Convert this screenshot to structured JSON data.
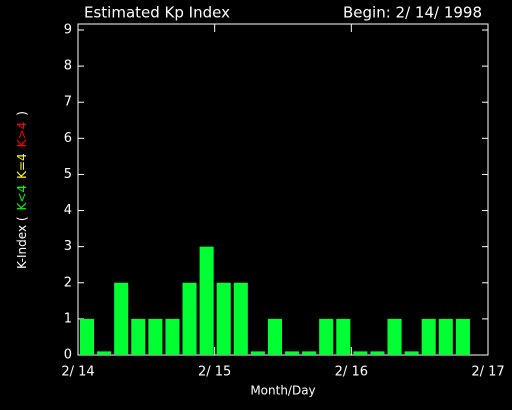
{
  "chart_data": {
    "type": "bar",
    "title": "Estimated Kp Index",
    "subtitle": "Begin: 2/ 14/ 1998",
    "xlabel": "Month/Day",
    "ylabel_parts": [
      {
        "text": "K-Index (",
        "color": "#ffffff"
      },
      {
        "text": "K<4",
        "color": "#00ff00"
      },
      {
        "text": "K=4",
        "color": "#ffff00"
      },
      {
        "text": "K>4",
        "color": "#ff0000"
      },
      {
        "text": ")",
        "color": "#ffffff"
      }
    ],
    "x": [
      0,
      0.125,
      0.25,
      0.375,
      0.5,
      0.625,
      0.75,
      0.875,
      1,
      1.125,
      1.25,
      1.375,
      1.5,
      1.625,
      1.75,
      1.875,
      2,
      2.125,
      2.25,
      2.375,
      2.5,
      2.625,
      2.75,
      2.875
    ],
    "values": [
      1,
      0.1,
      2,
      1,
      1,
      1,
      2,
      3,
      2,
      2,
      0.1,
      1,
      0.1,
      0.1,
      1,
      1,
      0.1,
      0.1,
      1,
      0.1,
      1,
      1,
      1,
      null
    ],
    "bar_width": 0.125,
    "color": "#00ff33",
    "xlim": [
      0,
      3
    ],
    "xticks": [
      {
        "value": 0,
        "label": "2/ 14"
      },
      {
        "value": 1,
        "label": "2/ 15"
      },
      {
        "value": 2,
        "label": "2/ 16"
      },
      {
        "value": 3,
        "label": "2/ 17"
      }
    ],
    "ylim": [
      0,
      9
    ],
    "yticks": [
      0,
      1,
      2,
      3,
      4,
      5,
      6,
      7,
      8,
      9
    ]
  }
}
